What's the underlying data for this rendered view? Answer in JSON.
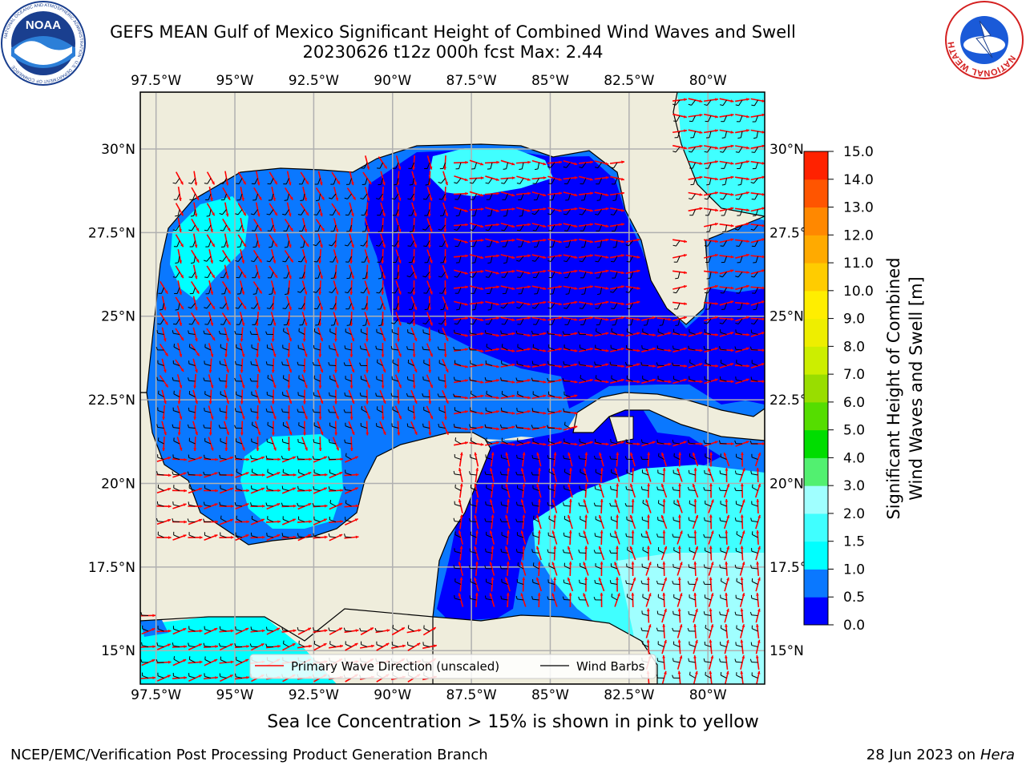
{
  "header": {
    "title_line1": "GEFS MEAN Gulf of Mexico Significant Height of Combined Wind Waves and Swell",
    "title_line2": "20230626 t12z 000h fcst   Max: 2.44"
  },
  "logos": {
    "left": {
      "name": "NOAA",
      "ring_text": "NATIONAL OCEANIC AND ATMOSPHERIC ADMINISTRATION · U.S. DEPARTMENT OF COMMERCE",
      "color": "#1a3f8f"
    },
    "right": {
      "name": "NATIONAL WEATHER SERVICE",
      "color": "#d42020"
    }
  },
  "map": {
    "lon_labels": [
      "97.5°W",
      "95°W",
      "92.5°W",
      "90°W",
      "87.5°W",
      "85°W",
      "82.5°W",
      "80°W"
    ],
    "lat_labels": [
      "30°N",
      "27.5°N",
      "25°N",
      "22.5°N",
      "20°N",
      "17.5°N",
      "15°N"
    ],
    "lon_range": [
      -98,
      -78.2
    ],
    "lat_range": [
      14,
      31.7
    ],
    "land_color": "#efeddc",
    "grid_color": "#b0b0b0",
    "wave_arrow_color": "#ff0000",
    "barb_color": "#000000"
  },
  "legend": {
    "wave_label": "Primary Wave Direction (unscaled)",
    "barb_label": "Wind Barbs"
  },
  "colorbar": {
    "label_line1": "Significant Height of Combined",
    "label_line2": "Wind Waves and Swell [m]",
    "ticks": [
      "0.0",
      "0.5",
      "1.0",
      "1.5",
      "2.0",
      "3.0",
      "4.0",
      "5.0",
      "6.0",
      "7.0",
      "8.0",
      "9.0",
      "10.0",
      "11.0",
      "12.0",
      "13.0",
      "14.0",
      "15.0"
    ],
    "colors": [
      "#0000ff",
      "#0a78ff",
      "#00ffff",
      "#40ffff",
      "#a0ffff",
      "#52f070",
      "#00dd00",
      "#55dd00",
      "#99dd00",
      "#ccee00",
      "#eeee00",
      "#ffee00",
      "#ffcc00",
      "#ffaa00",
      "#ff8800",
      "#ff5500",
      "#ff2200",
      "#ff0000"
    ]
  },
  "footer": {
    "ice_note": "Sea Ice Concentration > 15% is shown in pink to yellow",
    "left": "NCEP/EMC/Verification Post Processing Product Generation Branch",
    "right_date": "28 Jun 2023 on",
    "right_host": "Hera"
  }
}
